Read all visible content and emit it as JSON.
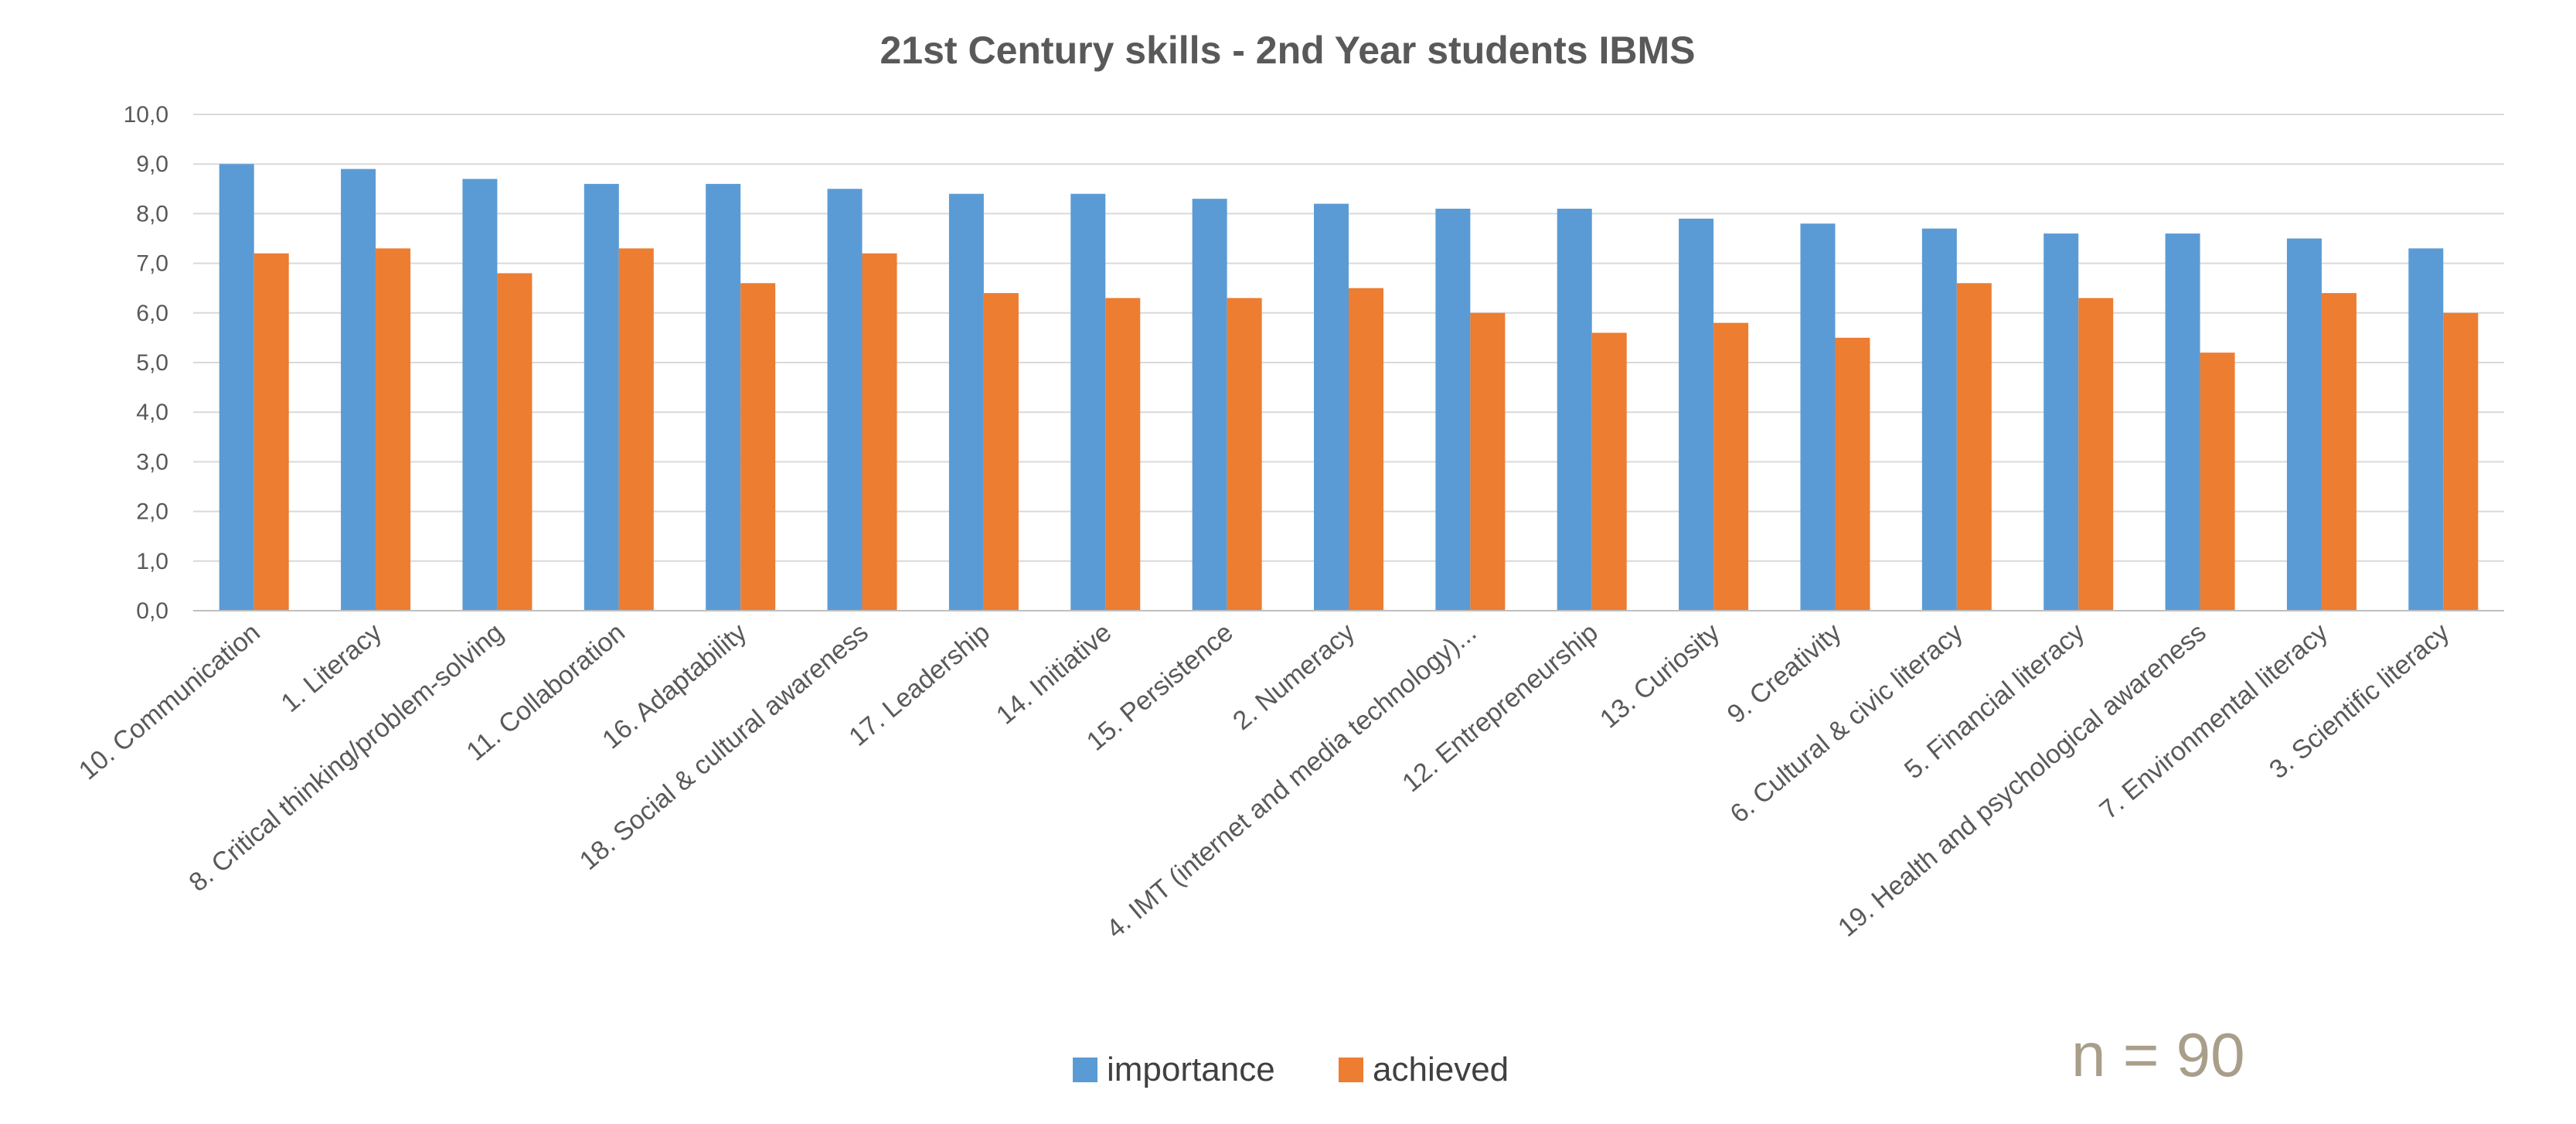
{
  "chart_data": {
    "type": "bar",
    "title": "21st Century skills - 2nd Year students IBMS",
    "xlabel": "",
    "ylabel": "",
    "ylim": [
      0,
      10
    ],
    "yticks": [
      "0,0",
      "1,0",
      "2,0",
      "3,0",
      "4,0",
      "5,0",
      "6,0",
      "7,0",
      "8,0",
      "9,0",
      "10,0"
    ],
    "grid": true,
    "legend_position": "bottom",
    "annotation": "n = 90",
    "categories": [
      "10. Communication",
      "1. Literacy",
      "8. Critical thinking/problem-solving",
      "11. Collaboration",
      "16. Adaptability",
      "18. Social & cultural awareness",
      "17. Leadership",
      "14. Initiative",
      "15. Persistence",
      "2. Numeracy",
      "4. IMT (internet and media technology)...",
      "12. Entrepreneurship",
      "13. Curiosity",
      "9. Creativity",
      "6. Cultural & civic literacy",
      "5. Financial literacy",
      "19. Health and psychological awareness",
      "7. Environmental literacy",
      "3. Scientific literacy"
    ],
    "series": [
      {
        "name": "importance",
        "color": "#5b9bd5",
        "values": [
          9.0,
          8.9,
          8.7,
          8.6,
          8.6,
          8.5,
          8.4,
          8.4,
          8.3,
          8.2,
          8.1,
          8.1,
          7.9,
          7.8,
          7.7,
          7.6,
          7.6,
          7.5,
          7.3
        ]
      },
      {
        "name": "achieved",
        "color": "#ed7d31",
        "values": [
          7.2,
          7.3,
          6.8,
          7.3,
          6.6,
          7.2,
          6.4,
          6.3,
          6.3,
          6.5,
          6.0,
          5.6,
          5.8,
          5.5,
          6.6,
          6.3,
          5.2,
          6.4,
          6.0
        ]
      }
    ]
  }
}
